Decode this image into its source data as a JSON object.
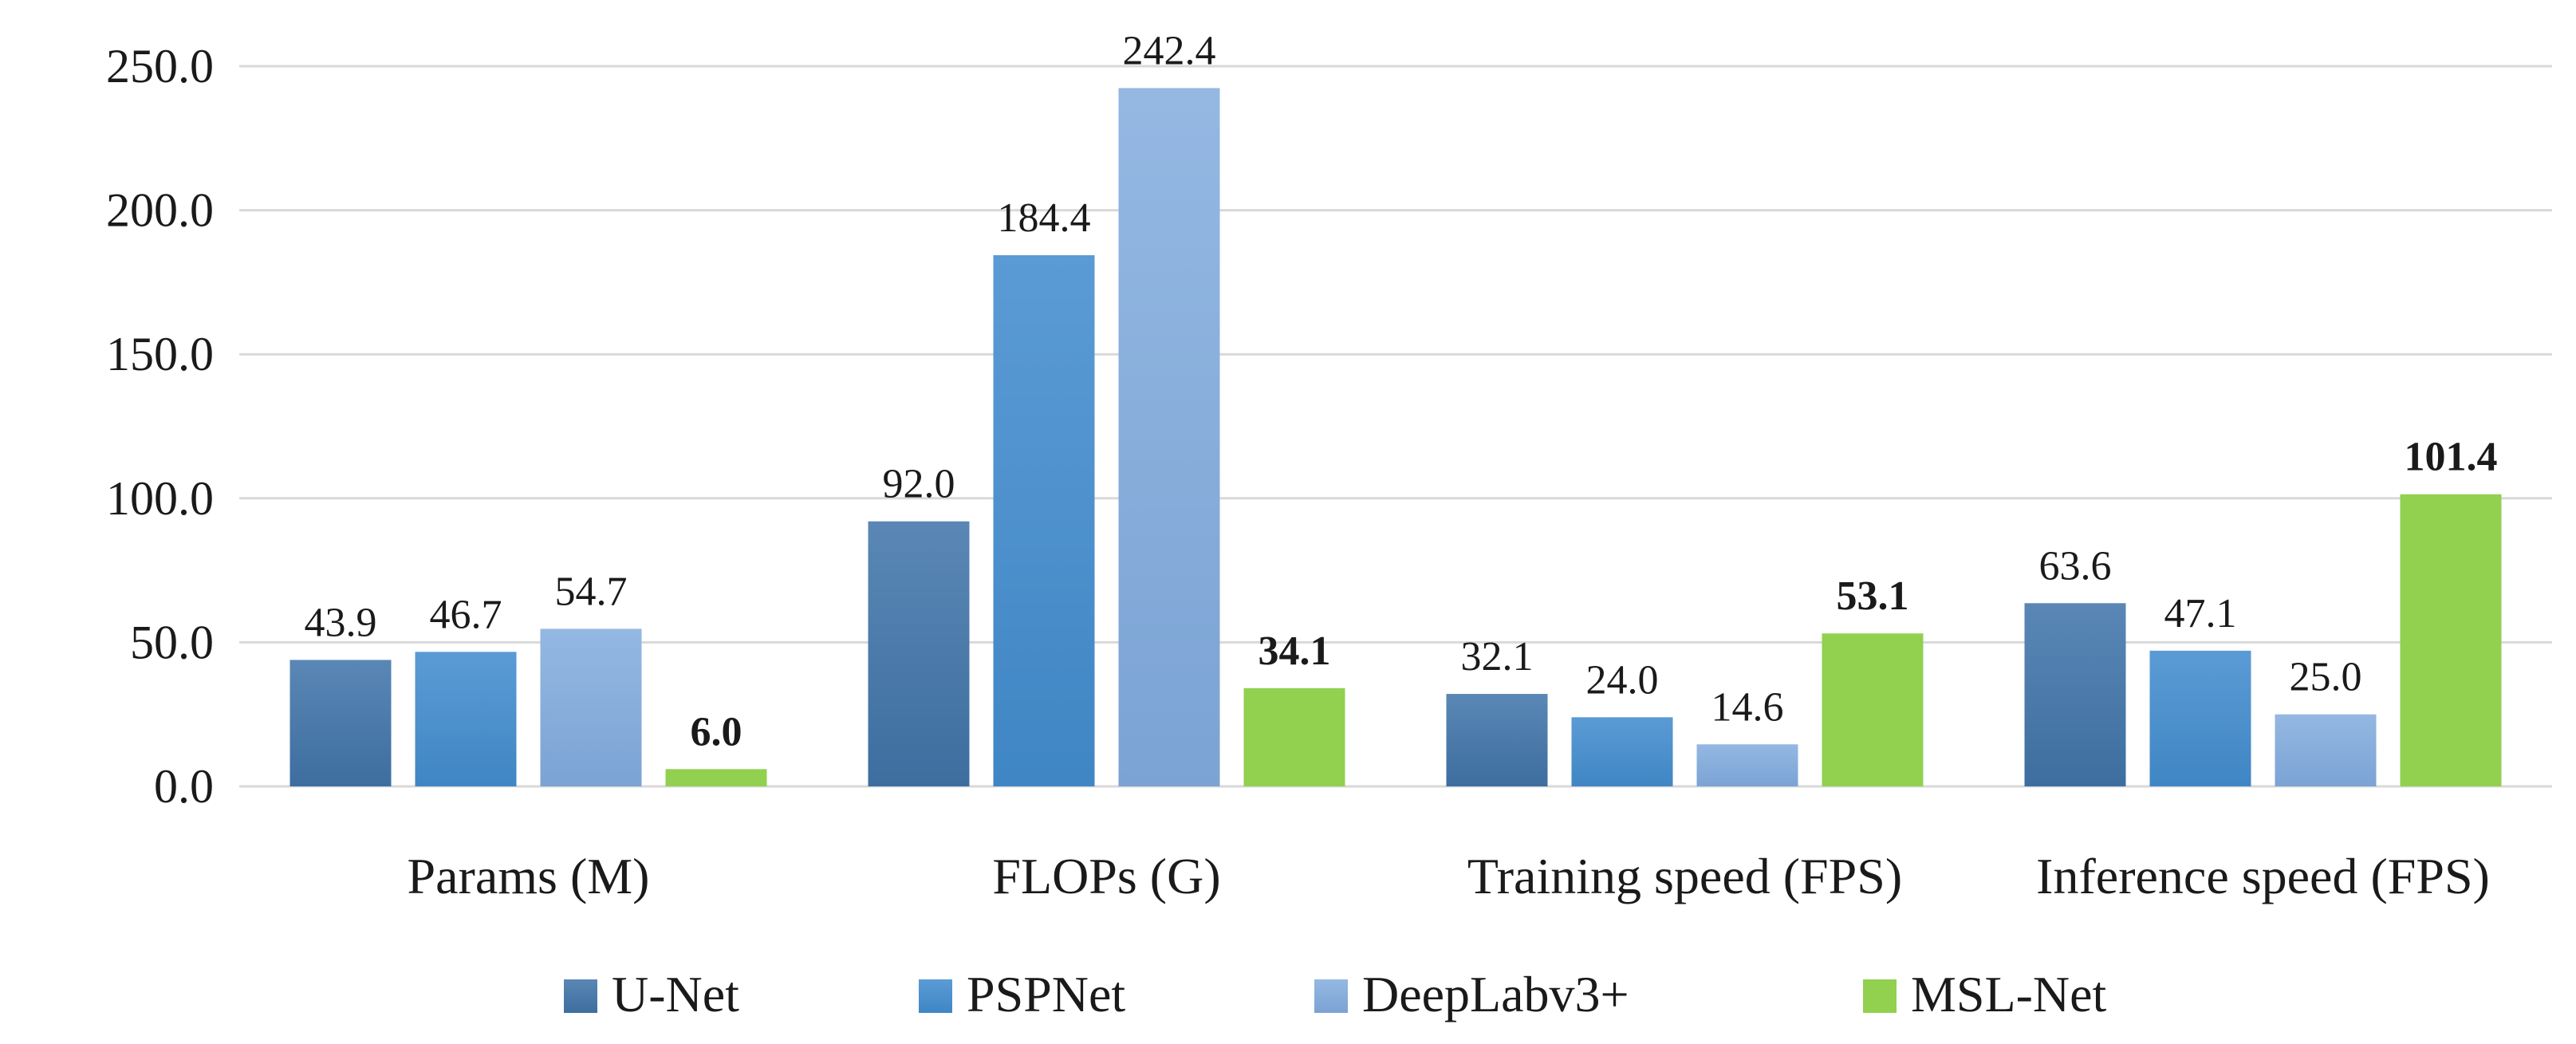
{
  "chart_data": {
    "type": "bar",
    "title": "",
    "xlabel": "",
    "ylabel": "",
    "ylim": [
      0,
      250
    ],
    "yticks": [
      0,
      50,
      100,
      150,
      200,
      250
    ],
    "ytick_labels": [
      "0.0",
      "50.0",
      "100.0",
      "150.0",
      "200.0",
      "250.0"
    ],
    "grid": true,
    "legend_position": "bottom",
    "categories": [
      "Params (M)",
      "FLOPs (G)",
      "Training speed (FPS)",
      "Inference speed (FPS)"
    ],
    "series": [
      {
        "name": "U-Net",
        "color": "#3d6e9f",
        "color_light": "#5a87b5",
        "values": [
          43.9,
          92.0,
          32.1,
          63.6
        ],
        "labels": [
          "43.9",
          "92.0",
          "32.1",
          "63.6"
        ]
      },
      {
        "name": "PSPNet",
        "color": "#3f86c4",
        "color_light": "#5b9bd5",
        "values": [
          46.7,
          184.4,
          24.0,
          47.1
        ],
        "labels": [
          "46.7",
          "184.4",
          "24.0",
          "47.1"
        ]
      },
      {
        "name": "DeepLabv3+",
        "color": "#7ba3d4",
        "color_light": "#94b8e2",
        "values": [
          54.7,
          242.4,
          14.6,
          25.0
        ],
        "labels": [
          "54.7",
          "242.4",
          "14.6",
          "25.0"
        ]
      },
      {
        "name": "MSL-Net",
        "color": "#92d050",
        "color_light": "#92d050",
        "values": [
          6.0,
          34.1,
          53.1,
          101.4
        ],
        "labels": [
          "6.0",
          "34.1",
          "53.1",
          "101.4"
        ],
        "bold_labels": true
      }
    ]
  }
}
